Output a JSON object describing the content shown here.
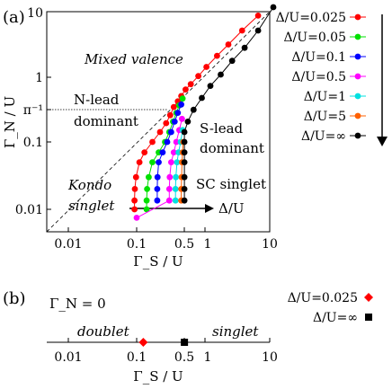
{
  "panel_a_label": "(a)",
  "panel_b_label": "(b)",
  "chart_data": [
    {
      "type": "scatter",
      "panel": "(a)",
      "xlabel": "Γ_S / U",
      "ylabel": "Γ_N / U",
      "x_scale": "log",
      "y_scale": "log",
      "xlim": [
        0.004,
        10
      ],
      "ylim": [
        0.004,
        10
      ],
      "x_ticks": [
        "0.01",
        "0.1",
        "0.5",
        "1",
        "10"
      ],
      "y_ticks": [
        "0.01",
        "0.1",
        "π⁻¹",
        "1",
        "10"
      ],
      "regions": [
        "Mixed valence",
        "N-lead dominant",
        "S-lead dominant",
        "Kondo singlet",
        "SC singlet"
      ],
      "arrow_label": "Δ/U",
      "legend": [
        {
          "label": "Δ/U=0.025",
          "color": "#ff0000"
        },
        {
          "label": "Δ/U=0.05",
          "color": "#00e000"
        },
        {
          "label": "Δ/U=0.1",
          "color": "#0000ff"
        },
        {
          "label": "Δ/U=0.5",
          "color": "#ff00ff"
        },
        {
          "label": "Δ/U=1",
          "color": "#00e0e0"
        },
        {
          "label": "Δ/U=5",
          "color": "#ff6000"
        },
        {
          "label": "Δ/U=∞",
          "color": "#000000"
        }
      ],
      "series": [
        {
          "name": "Δ/U=0.025",
          "color": "#ff0000",
          "x": [
            0.093,
            0.093,
            0.094,
            0.098,
            0.11,
            0.13,
            0.17,
            0.22,
            0.27,
            0.31,
            0.35,
            0.4,
            0.45,
            0.52,
            0.62,
            0.8,
            1.05,
            1.5,
            2.2,
            3.5,
            6.0
          ],
          "y": [
            0.01,
            0.0135,
            0.02,
            0.03,
            0.05,
            0.07,
            0.1,
            0.14,
            0.19,
            0.25,
            0.33,
            0.4,
            0.48,
            0.6,
            0.72,
            0.95,
            1.3,
            1.9,
            2.8,
            4.5,
            7.5
          ]
        },
        {
          "name": "Δ/U=0.05",
          "color": "#00e000",
          "x": [
            0.14,
            0.14,
            0.142,
            0.15,
            0.17,
            0.21,
            0.26,
            0.3,
            0.34,
            0.38,
            0.42,
            0.47
          ],
          "y": [
            0.01,
            0.0135,
            0.02,
            0.03,
            0.05,
            0.07,
            0.1,
            0.14,
            0.2,
            0.27,
            0.35,
            0.44
          ]
        },
        {
          "name": "Δ/U=0.1",
          "color": "#0000ff",
          "x": [
            0.2,
            0.2,
            0.202,
            0.21,
            0.24,
            0.28,
            0.32,
            0.36,
            0.4,
            0.45
          ],
          "y": [
            0.0135,
            0.02,
            0.03,
            0.05,
            0.07,
            0.1,
            0.14,
            0.2,
            0.27,
            0.36
          ]
        },
        {
          "name": "Δ/U=0.5",
          "color": "#ff00ff",
          "x": [
            0.1,
            0.3,
            0.3,
            0.305,
            0.32,
            0.35,
            0.38,
            0.42,
            0.46
          ],
          "y": [
            0.0075,
            0.0135,
            0.02,
            0.03,
            0.05,
            0.07,
            0.1,
            0.15,
            0.22
          ]
        },
        {
          "name": "Δ/U=1",
          "color": "#00e0e0",
          "x": [
            0.37,
            0.37,
            0.375,
            0.39,
            0.41,
            0.44,
            0.47
          ],
          "y": [
            0.0135,
            0.02,
            0.03,
            0.05,
            0.07,
            0.1,
            0.15
          ]
        },
        {
          "name": "Δ/U=5",
          "color": "#ff6000",
          "x": [
            0.45,
            0.45,
            0.455,
            0.46,
            0.47,
            0.48
          ],
          "y": [
            0.0135,
            0.02,
            0.03,
            0.05,
            0.07,
            0.1
          ]
        },
        {
          "name": "Δ/U=∞",
          "color": "#000000",
          "x": [
            0.5,
            0.5,
            0.5,
            0.5,
            0.5,
            0.5,
            0.5,
            0.56,
            0.68,
            0.9,
            1.2,
            1.7,
            2.5,
            3.8,
            6.0,
            10.0
          ],
          "y": [
            0.0135,
            0.02,
            0.03,
            0.05,
            0.07,
            0.1,
            0.14,
            0.2,
            0.3,
            0.45,
            0.68,
            1.0,
            1.6,
            2.5,
            4.5,
            10.0
          ]
        }
      ]
    },
    {
      "type": "scatter",
      "panel": "(b)",
      "xlabel": "Γ_S / U",
      "x_scale": "log",
      "xlim": [
        0.004,
        10
      ],
      "x_ticks": [
        "0.01",
        "0.1",
        "0.5",
        "1",
        "10"
      ],
      "condition": "Γ_N = 0",
      "regions": [
        "doublet",
        "singlet"
      ],
      "legend": [
        {
          "label": "Δ/U=0.025",
          "color": "#ff0000",
          "marker": "diamond"
        },
        {
          "label": "Δ/U=∞",
          "color": "#000000",
          "marker": "square"
        }
      ],
      "series": [
        {
          "name": "Δ/U=0.025",
          "color": "#ff0000",
          "x": [
            0.125
          ]
        },
        {
          "name": "Δ/U=∞",
          "color": "#000000",
          "x": [
            0.5
          ]
        }
      ]
    }
  ]
}
